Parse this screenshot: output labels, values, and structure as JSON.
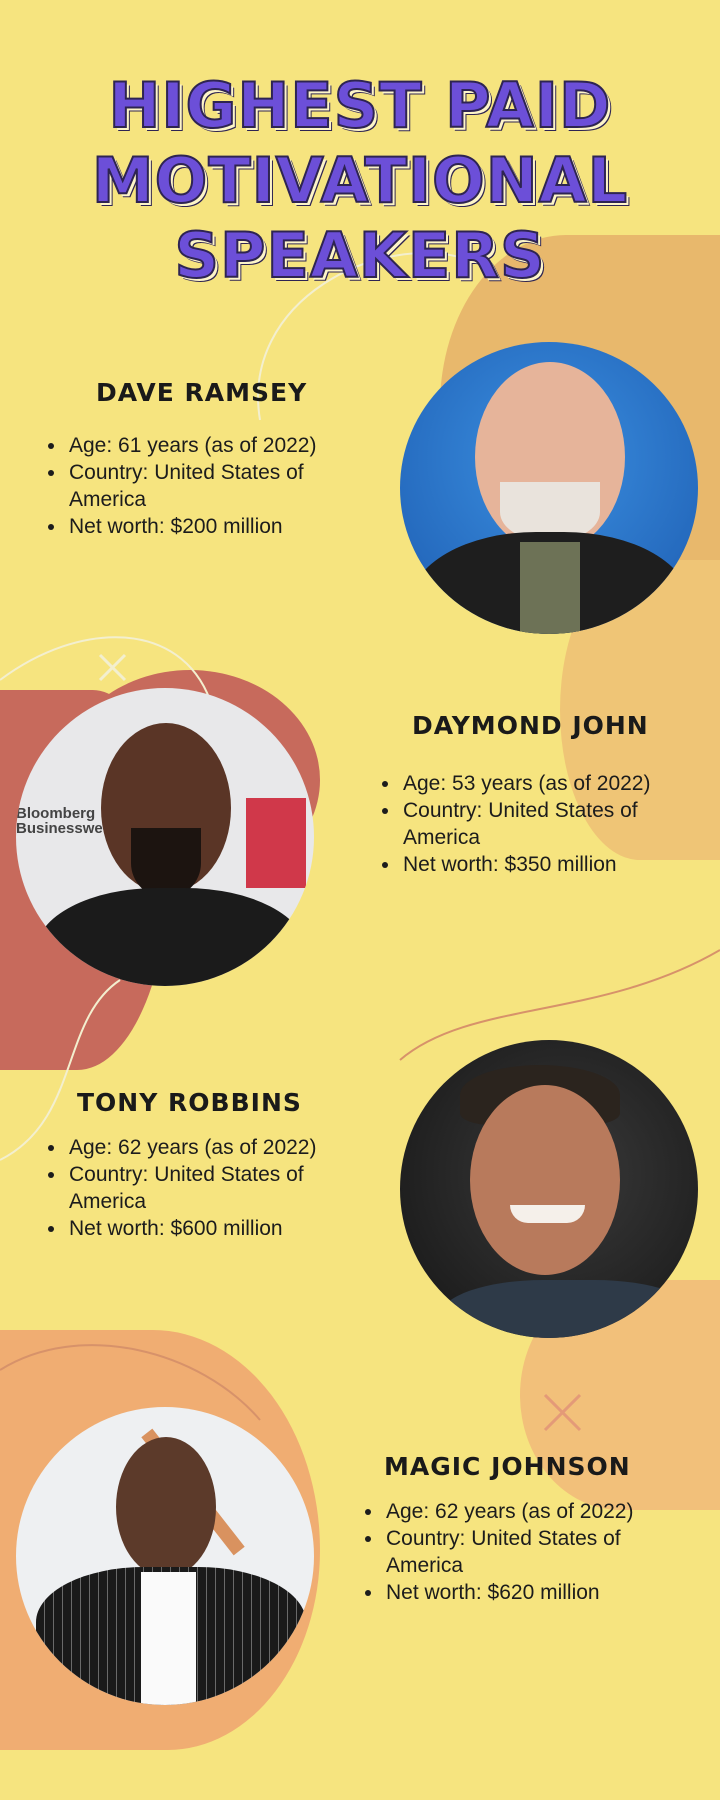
{
  "title": {
    "line1": "HIGHEST PAID",
    "line2": "MOTIVATIONAL",
    "line3": "SPEAKERS"
  },
  "colors": {
    "background": "#f6e47f",
    "title": "#6c4fd8",
    "blob_tan": "#e8b86c",
    "blob_red": "#c76a5c",
    "blob_peach": "#f0ad72"
  },
  "speakers": [
    {
      "name": "DAVE RAMSEY",
      "age": "Age: 61 years (as of 2022)",
      "country": "Country: United States of America",
      "net_worth": "Net worth: $200 million"
    },
    {
      "name": "DAYMOND JOHN",
      "age": "Age: 53 years (as of 2022)",
      "country": "Country: United States of America",
      "net_worth": "Net worth: $350 million",
      "photo_text": "Bloomberg Businessweek"
    },
    {
      "name": "TONY ROBBINS",
      "age": "Age: 62 years (as of 2022)",
      "country": "Country: United States of America",
      "net_worth": "Net worth: $600 million"
    },
    {
      "name": "MAGIC JOHNSON",
      "age": "Age: 62 years (as of 2022)",
      "country": "Country: United States of America",
      "net_worth": "Net worth: $620 million"
    }
  ]
}
